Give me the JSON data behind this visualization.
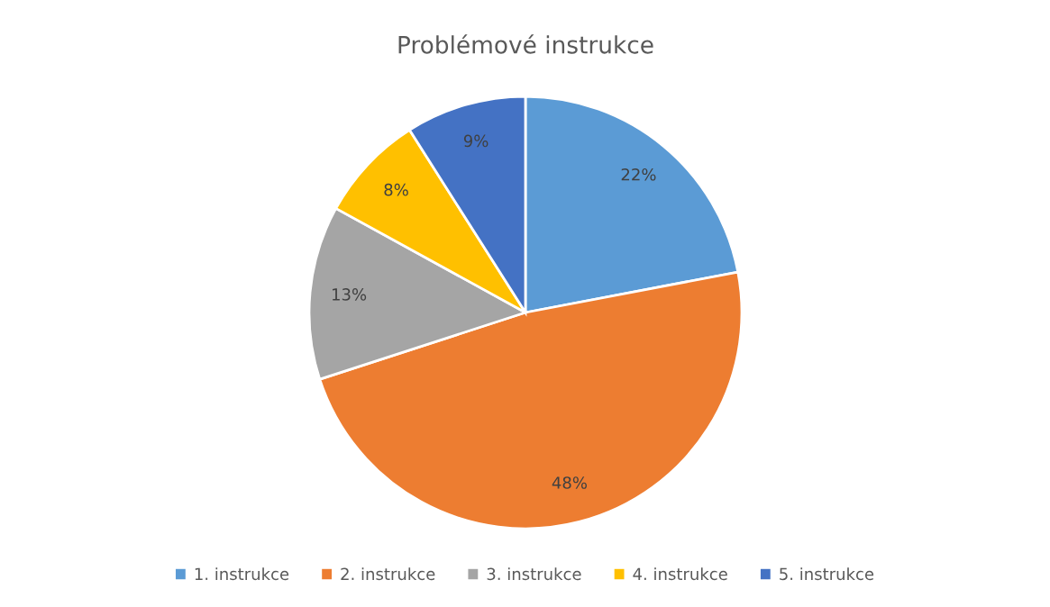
{
  "chart_data": {
    "type": "pie",
    "title": "Problémové instrukce",
    "categories": [
      "1. instrukce",
      "2. instrukce",
      "3. instrukce",
      "4. instrukce",
      "5. instrukce"
    ],
    "values": [
      22,
      48,
      13,
      8,
      9
    ],
    "value_labels": [
      "22%",
      "48%",
      "13%",
      "8%",
      "9%"
    ],
    "colors": [
      "#5b9bd5",
      "#ed7d31",
      "#a5a5a5",
      "#ffc000",
      "#4472c4"
    ],
    "legend": "bottom"
  }
}
